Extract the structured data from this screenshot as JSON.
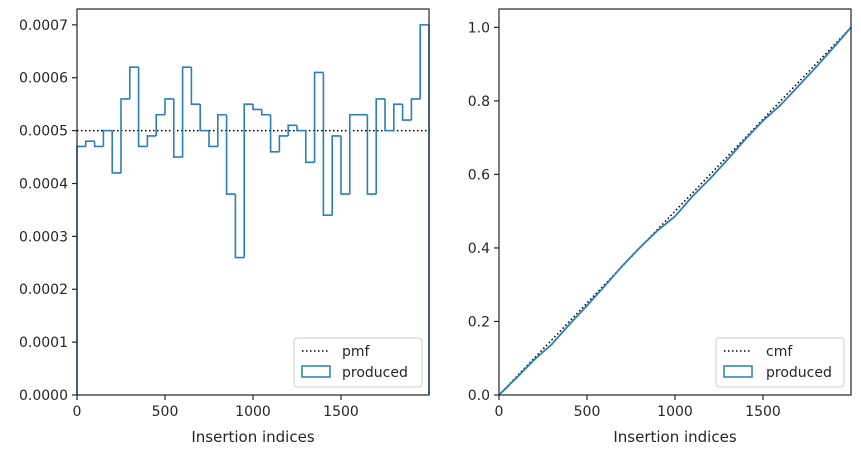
{
  "chart_data": [
    {
      "type": "step",
      "xlabel": "Insertion indices",
      "ylabel": "",
      "xlim": [
        0,
        2000
      ],
      "ylim": [
        0,
        0.00073
      ],
      "x_ticks": [
        0,
        500,
        1000,
        1500
      ],
      "x_tick_labels": [
        "0",
        "500",
        "1000",
        "1500"
      ],
      "y_ticks": [
        0,
        0.0001,
        0.0002,
        0.0003,
        0.0004,
        0.0005,
        0.0006,
        0.0007
      ],
      "y_tick_labels": [
        "0.0000",
        "0.0001",
        "0.0002",
        "0.0003",
        "0.0004",
        "0.0005",
        "0.0006",
        "0.0007"
      ],
      "legend_position": "lower-right",
      "series": [
        {
          "name": "pmf",
          "style": "dotted",
          "color": "#000000",
          "x": [
            0,
            2000
          ],
          "y": [
            0.0005,
            0.0005
          ]
        },
        {
          "name": "produced",
          "style": "histogram-step",
          "color": "#2a7fb5",
          "bin_width": 50,
          "bin_edges_start": 0,
          "values": [
            0.00047,
            0.00048,
            0.00047,
            0.0005,
            0.00042,
            0.00056,
            0.00062,
            0.00047,
            0.00049,
            0.00053,
            0.00056,
            0.00045,
            0.00062,
            0.00055,
            0.0005,
            0.00047,
            0.00053,
            0.00038,
            0.00026,
            0.00055,
            0.00054,
            0.00053,
            0.00046,
            0.00049,
            0.00051,
            0.0005,
            0.00044,
            0.00061,
            0.00034,
            0.00049,
            0.00038,
            0.00053,
            0.00053,
            0.00038,
            0.00056,
            0.0005,
            0.00055,
            0.00052,
            0.00056,
            0.0007
          ]
        }
      ]
    },
    {
      "type": "line",
      "xlabel": "Insertion indices",
      "ylabel": "",
      "xlim": [
        0,
        2000
      ],
      "ylim": [
        0,
        1.05
      ],
      "x_ticks": [
        0,
        500,
        1000,
        1500
      ],
      "x_tick_labels": [
        "0",
        "500",
        "1000",
        "1500"
      ],
      "y_ticks": [
        0,
        0.2,
        0.4,
        0.6,
        0.8,
        1.0
      ],
      "y_tick_labels": [
        "0.0",
        "0.2",
        "0.4",
        "0.6",
        "0.8",
        "1.0"
      ],
      "legend_position": "lower-right",
      "series": [
        {
          "name": "cmf",
          "style": "dotted",
          "color": "#000000",
          "x": [
            0,
            2000
          ],
          "y": [
            0,
            1.0
          ]
        },
        {
          "name": "produced",
          "style": "solid",
          "color": "#2a7fb5",
          "x": [
            0,
            100,
            200,
            300,
            400,
            500,
            600,
            700,
            800,
            900,
            1000,
            1100,
            1200,
            1300,
            1400,
            1500,
            1600,
            1700,
            1800,
            1900,
            2000
          ],
          "y": [
            0,
            0.047,
            0.096,
            0.138,
            0.192,
            0.243,
            0.296,
            0.351,
            0.401,
            0.447,
            0.486,
            0.541,
            0.589,
            0.641,
            0.696,
            0.746,
            0.789,
            0.84,
            0.891,
            0.945,
            1.0
          ]
        }
      ]
    }
  ]
}
